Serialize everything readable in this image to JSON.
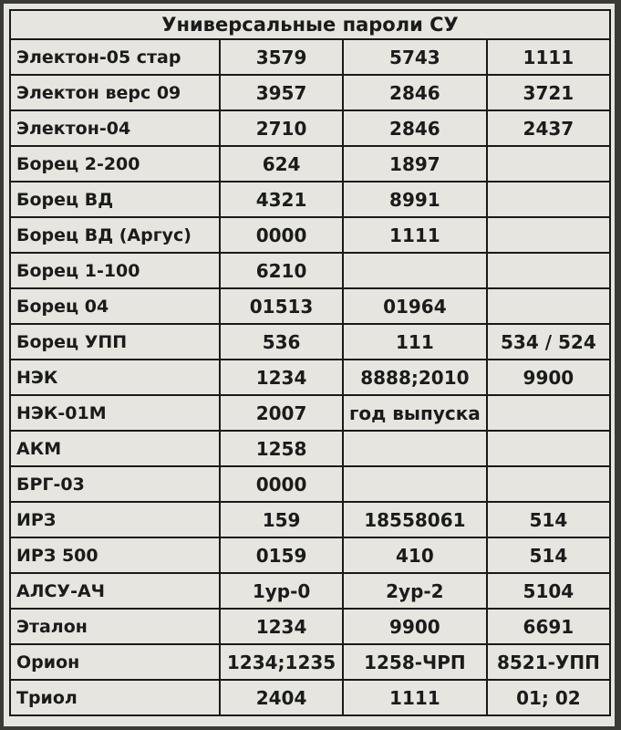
{
  "header": {
    "title": "Универсальные пароли СУ"
  },
  "table": {
    "rows": [
      [
        "Электон-05 стар",
        "3579",
        "5743",
        "1111"
      ],
      [
        "Электон верс  09",
        "3957",
        "2846",
        "3721"
      ],
      [
        "Электон-04",
        "2710",
        "2846",
        "2437"
      ],
      [
        "Борец 2-200",
        "624",
        "1897"
      ],
      [
        "Борец ВД",
        "4321",
        "8991"
      ],
      [
        "Борец ВД (Аргус)",
        "0000",
        "1111"
      ],
      [
        "Борец 1-100",
        "6210"
      ],
      [
        "Борец 04",
        "01513",
        "01964"
      ],
      [
        "Борец УПП",
        "536",
        "111",
        "534 / 524"
      ],
      [
        "НЭК",
        "1234",
        "8888;2010",
        "9900"
      ],
      [
        "НЭК-01М",
        "2007",
        "год выпуска"
      ],
      [
        "АКМ",
        "1258"
      ],
      [
        "БРГ-03",
        "0000"
      ],
      [
        "ИРЗ",
        "159",
        "18558061",
        "514"
      ],
      [
        "ИРЗ 500",
        "0159",
        "410",
        "514"
      ],
      [
        "АЛСУ-АЧ",
        "1ур-0",
        "2ур-2",
        "5104"
      ],
      [
        "Эталон",
        "1234",
        "9900",
        "6691"
      ],
      [
        "Орион",
        "1234;1235",
        "1258-ЧРП",
        "8521-УПП"
      ],
      [
        "Триол",
        "2404",
        "1111",
        "01; 02"
      ]
    ]
  }
}
